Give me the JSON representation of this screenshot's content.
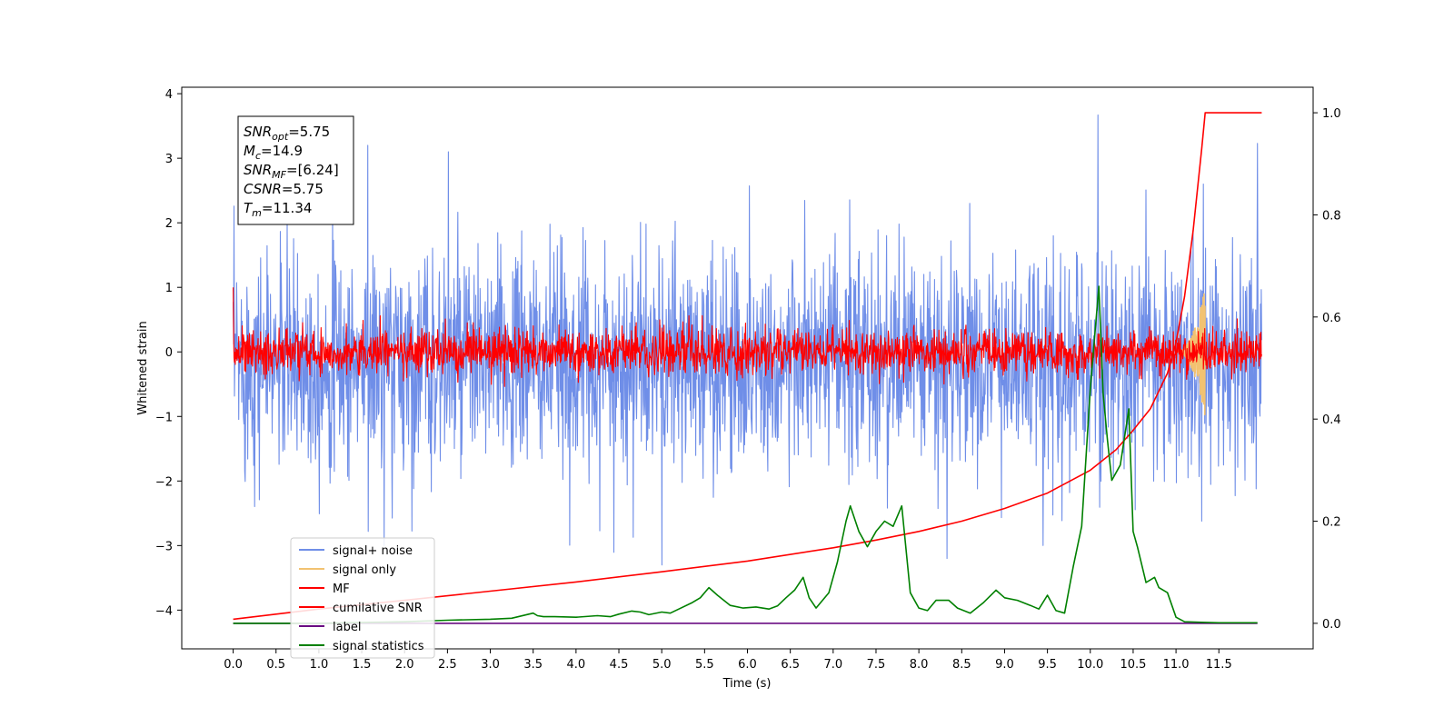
{
  "chart_data": {
    "type": "line",
    "title": "",
    "xlabel": "Time (s)",
    "ylabel": "Whitened strain",
    "xlim": [
      -0.6,
      12.6
    ],
    "ylim": [
      -4.6,
      4.1
    ],
    "ylim_right": [
      -0.05,
      1.05
    ],
    "x_ticks": [
      0.0,
      0.5,
      1.0,
      1.5,
      2.0,
      2.5,
      3.0,
      3.5,
      4.0,
      4.5,
      5.0,
      5.5,
      6.0,
      6.5,
      7.0,
      7.5,
      8.0,
      8.5,
      9.0,
      9.5,
      10.0,
      10.5,
      11.0,
      11.5
    ],
    "x_tick_labels": [
      "0.0",
      "0.5",
      "1.0",
      "1.5",
      "2.0",
      "2.5",
      "3.0",
      "3.5",
      "4.0",
      "4.5",
      "5.0",
      "5.5",
      "6.0",
      "6.5",
      "7.0",
      "7.5",
      "8.0",
      "8.5",
      "9.0",
      "9.5",
      "10.0",
      "10.5",
      "11.0",
      "11.5"
    ],
    "y_ticks": [
      -4,
      -3,
      -2,
      -1,
      0,
      1,
      2,
      3,
      4
    ],
    "y_tick_labels": [
      "−4",
      "−3",
      "−2",
      "−1",
      "0",
      "1",
      "2",
      "3",
      "4"
    ],
    "y_right_ticks": [
      0.0,
      0.2,
      0.4,
      0.6,
      0.8,
      1.0
    ],
    "y_right_tick_labels": [
      "0.0",
      "0.2",
      "0.4",
      "0.6",
      "0.8",
      "1.0"
    ],
    "grid": false,
    "legend_position": "lower-left",
    "annotation_lines": [
      {
        "base": "SNR",
        "sub": "opt",
        "value": "=5.75"
      },
      {
        "base": "M",
        "sub": "c",
        "value": "=14.9"
      },
      {
        "base": "SNR",
        "sub": "MF",
        "value": "=[6.24]"
      },
      {
        "base": "CSNR",
        "sub": "",
        "value": "=5.75"
      },
      {
        "base": "T",
        "sub": "m",
        "value": "=11.34"
      }
    ],
    "series": [
      {
        "name": "signal+ noise",
        "axis": "left",
        "color": "#6f8ee8",
        "kind": "noise",
        "t_range": [
          0.0,
          12.0
        ],
        "mean": -0.15,
        "std": 0.85,
        "extremes": [
          [
            10.09,
            3.67
          ],
          [
            11.32,
            2.6
          ],
          [
            11.95,
            3.23
          ],
          [
            1.57,
            3.2
          ],
          [
            2.51,
            3.1
          ],
          [
            1.76,
            -3.0
          ],
          [
            5.0,
            -3.3
          ],
          [
            8.33,
            -3.2
          ],
          [
            9.45,
            -3.0
          ]
        ]
      },
      {
        "name": "signal only",
        "axis": "left",
        "color": "#f2c271",
        "kind": "chirp",
        "t_range": [
          11.0,
          11.34
        ],
        "peak_amplitude": 1.0
      },
      {
        "name": "MF",
        "axis": "left",
        "color": "#ff0000",
        "kind": "noise",
        "t_range": [
          0.0,
          12.0
        ],
        "mean": 0.0,
        "std": 0.17,
        "start_value": 1.0
      },
      {
        "name": "cumilative SNR",
        "axis": "right",
        "color": "#ff0000",
        "x": [
          0.0,
          0.5,
          1.0,
          2.0,
          3.0,
          4.0,
          5.0,
          6.0,
          7.0,
          7.5,
          8.0,
          8.5,
          9.0,
          9.5,
          10.0,
          10.3,
          10.5,
          10.7,
          10.9,
          11.0,
          11.1,
          11.2,
          11.3,
          11.34,
          11.5,
          11.8,
          12.0
        ],
        "y": [
          0.008,
          0.018,
          0.028,
          0.045,
          0.063,
          0.081,
          0.101,
          0.122,
          0.148,
          0.163,
          0.18,
          0.2,
          0.225,
          0.255,
          0.3,
          0.34,
          0.378,
          0.42,
          0.49,
          0.55,
          0.64,
          0.77,
          0.93,
          1.0,
          1.0,
          1.0,
          1.0
        ]
      },
      {
        "name": "label",
        "axis": "right",
        "color": "#6a0d83",
        "x": [
          0.0,
          11.95
        ],
        "y": [
          0.0,
          0.0
        ]
      },
      {
        "name": "signal statistics",
        "axis": "right",
        "color": "#008000",
        "x": [
          0.0,
          1.0,
          2.0,
          2.5,
          3.0,
          3.25,
          3.5,
          3.55,
          3.62,
          3.75,
          4.0,
          4.25,
          4.4,
          4.5,
          4.65,
          4.75,
          4.85,
          5.0,
          5.1,
          5.2,
          5.35,
          5.45,
          5.55,
          5.65,
          5.8,
          5.95,
          6.1,
          6.25,
          6.35,
          6.45,
          6.55,
          6.65,
          6.72,
          6.8,
          6.95,
          7.05,
          7.15,
          7.2,
          7.3,
          7.4,
          7.5,
          7.6,
          7.7,
          7.8,
          7.9,
          8.0,
          8.1,
          8.2,
          8.35,
          8.45,
          8.6,
          8.75,
          8.9,
          9.0,
          9.15,
          9.3,
          9.4,
          9.5,
          9.6,
          9.7,
          9.8,
          9.9,
          10.0,
          10.1,
          10.15,
          10.2,
          10.25,
          10.35,
          10.45,
          10.5,
          10.55,
          10.65,
          10.75,
          10.8,
          10.9,
          11.0,
          11.1,
          11.3,
          11.5,
          11.95
        ],
        "y": [
          0.0,
          0.0,
          0.003,
          0.006,
          0.008,
          0.01,
          0.02,
          0.015,
          0.013,
          0.013,
          0.012,
          0.015,
          0.013,
          0.018,
          0.024,
          0.022,
          0.017,
          0.022,
          0.02,
          0.028,
          0.04,
          0.05,
          0.07,
          0.055,
          0.035,
          0.03,
          0.032,
          0.028,
          0.034,
          0.05,
          0.065,
          0.09,
          0.05,
          0.03,
          0.06,
          0.12,
          0.2,
          0.23,
          0.18,
          0.15,
          0.18,
          0.2,
          0.19,
          0.23,
          0.06,
          0.03,
          0.025,
          0.045,
          0.045,
          0.03,
          0.02,
          0.04,
          0.065,
          0.05,
          0.045,
          0.035,
          0.028,
          0.055,
          0.025,
          0.02,
          0.11,
          0.19,
          0.46,
          0.66,
          0.45,
          0.36,
          0.28,
          0.31,
          0.42,
          0.18,
          0.15,
          0.08,
          0.09,
          0.07,
          0.06,
          0.012,
          0.003,
          0.002,
          0.001,
          0.001
        ]
      }
    ]
  }
}
